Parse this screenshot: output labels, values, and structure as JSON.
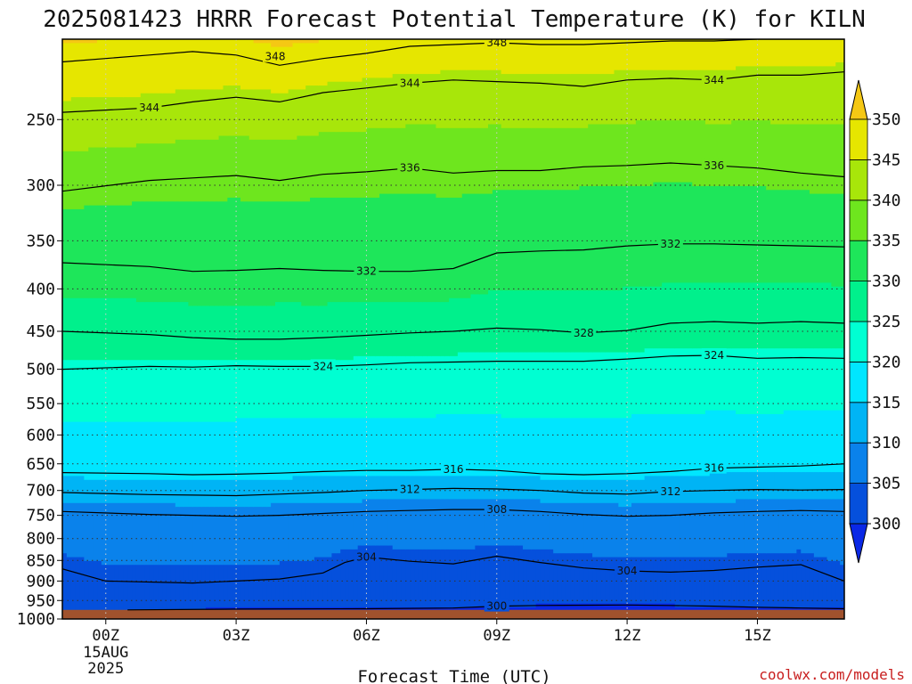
{
  "title": "2025081423 HRRR Forecast Potential Temperature (K) for KILN",
  "xlabel": "Forecast Time (UTC)",
  "credit": "coolwx.com/models",
  "chart_data": {
    "type": "contour",
    "title": "2025081423 HRRR Forecast Potential Temperature (K) for KILN",
    "xlabel": "Forecast Time (UTC)",
    "ylabel": "",
    "y_scale": "log",
    "y_inverted": true,
    "ylim": [
      1000,
      200
    ],
    "xlim": [
      -1,
      17
    ],
    "x_ticks": [
      {
        "x": 0,
        "label": "00Z",
        "sub": [
          "15AUG",
          "2025"
        ]
      },
      {
        "x": 3,
        "label": "03Z"
      },
      {
        "x": 6,
        "label": "06Z"
      },
      {
        "x": 9,
        "label": "09Z"
      },
      {
        "x": 12,
        "label": "12Z"
      },
      {
        "x": 15,
        "label": "15Z"
      }
    ],
    "y_ticks": [
      250,
      300,
      350,
      400,
      450,
      500,
      550,
      600,
      650,
      700,
      750,
      800,
      850,
      900,
      950,
      1000
    ],
    "grid": true,
    "colorbar": {
      "levels": [
        300,
        305,
        310,
        315,
        320,
        325,
        330,
        335,
        340,
        345,
        350
      ],
      "colors": [
        "#0a28e6",
        "#0550dc",
        "#0a82eb",
        "#00b4f5",
        "#00e6ff",
        "#00ffd2",
        "#00f08c",
        "#1ee65a",
        "#6ee61e",
        "#a8e60a",
        "#e6e600",
        "#f5c814"
      ],
      "extend": "both"
    },
    "contours": [
      {
        "level": 348,
        "x": [
          -1,
          1,
          2,
          3,
          4,
          5,
          6,
          7,
          8,
          9,
          10,
          11,
          12,
          13,
          14,
          15,
          16,
          17
        ],
        "y": [
          213,
          209,
          207,
          209,
          215,
          211,
          208,
          204,
          203,
          202,
          203,
          203,
          202,
          201,
          201,
          200,
          200,
          200
        ]
      },
      {
        "level": 344,
        "x": [
          -1,
          1,
          2,
          3,
          4,
          5,
          6,
          7,
          8,
          9,
          10,
          11,
          12,
          13,
          14,
          15,
          16,
          17
        ],
        "y": [
          245,
          242,
          238,
          235,
          238,
          232,
          229,
          226,
          224,
          225,
          226,
          228,
          224,
          223,
          224,
          221,
          221,
          219
        ]
      },
      {
        "level": 336,
        "x": [
          -1,
          1,
          2,
          3,
          4,
          5,
          6,
          7,
          8,
          9,
          10,
          11,
          12,
          13,
          14,
          15,
          16,
          17
        ],
        "y": [
          305,
          296,
          294,
          292,
          296,
          291,
          289,
          286,
          290,
          288,
          288,
          285,
          284,
          282,
          284,
          286,
          290,
          293
        ]
      },
      {
        "level": 332,
        "x": [
          -1,
          1,
          2,
          3,
          4,
          5,
          6,
          7,
          8,
          9,
          10,
          11,
          12,
          13,
          14,
          15,
          16,
          17
        ],
        "y": [
          372,
          376,
          381,
          380,
          378,
          380,
          381,
          381,
          378,
          362,
          360,
          359,
          355,
          353,
          353,
          354,
          355,
          356
        ]
      },
      {
        "level": 328,
        "x": [
          -1,
          1,
          2,
          3,
          4,
          5,
          6,
          7,
          8,
          9,
          10,
          11,
          12,
          13,
          14,
          15,
          16,
          17
        ],
        "y": [
          450,
          454,
          458,
          460,
          460,
          458,
          455,
          452,
          450,
          446,
          448,
          452,
          449,
          440,
          438,
          440,
          438,
          440
        ]
      },
      {
        "level": 324,
        "x": [
          -1,
          1,
          2,
          3,
          4,
          5,
          6,
          7,
          8,
          9,
          10,
          11,
          12,
          13,
          14,
          15,
          16,
          17
        ],
        "y": [
          500,
          496,
          497,
          495,
          496,
          496,
          494,
          491,
          490,
          489,
          489,
          489,
          486,
          482,
          481,
          485,
          484,
          485
        ]
      },
      {
        "level": 316,
        "x": [
          -1,
          1,
          2,
          3,
          4,
          5,
          6,
          7,
          8,
          9,
          10,
          11,
          12,
          13,
          14,
          15,
          16,
          17
        ],
        "y": [
          666,
          668,
          670,
          669,
          667,
          664,
          662,
          662,
          660,
          662,
          668,
          670,
          668,
          664,
          658,
          656,
          654,
          650
        ]
      },
      {
        "level": 312,
        "x": [
          -1,
          1,
          2,
          3,
          4,
          5,
          6,
          7,
          8,
          9,
          10,
          11,
          12,
          13,
          14,
          15,
          16,
          17
        ],
        "y": [
          704,
          708,
          709,
          710,
          707,
          704,
          700,
          698,
          696,
          697,
          700,
          705,
          707,
          702,
          700,
          698,
          699,
          698
        ]
      },
      {
        "level": 308,
        "x": [
          -1,
          1,
          2,
          3,
          4,
          5,
          6,
          7,
          8,
          9,
          10,
          11,
          12,
          13,
          14,
          15,
          16,
          17
        ],
        "y": [
          742,
          748,
          750,
          752,
          750,
          746,
          742,
          740,
          738,
          738,
          742,
          748,
          752,
          750,
          745,
          742,
          740,
          742
        ]
      },
      {
        "level": 304,
        "x": [
          -1,
          0,
          2,
          4,
          5,
          5.5,
          6,
          7,
          8,
          9,
          10,
          11,
          12,
          13,
          14,
          15,
          16,
          17
        ],
        "y": [
          870,
          900,
          905,
          895,
          880,
          855,
          842,
          852,
          858,
          840,
          855,
          868,
          875,
          878,
          874,
          866,
          860,
          900
        ]
      },
      {
        "level": 300,
        "x": [
          0.5,
          3,
          6,
          8,
          9,
          10,
          12,
          13,
          14,
          15,
          16,
          17
        ],
        "y": [
          975,
          973,
          972,
          970,
          965,
          963,
          962,
          963,
          965,
          968,
          970,
          972
        ]
      }
    ],
    "contour_labels": [
      {
        "text": "348",
        "x": 3.9,
        "y": 210
      },
      {
        "text": "348",
        "x": 9.0,
        "y": 202
      },
      {
        "text": "344",
        "x": 1.0,
        "y": 242
      },
      {
        "text": "344",
        "x": 7.0,
        "y": 226
      },
      {
        "text": "344",
        "x": 14.0,
        "y": 224
      },
      {
        "text": "336",
        "x": 7.0,
        "y": 286
      },
      {
        "text": "336",
        "x": 14.0,
        "y": 284
      },
      {
        "text": "332",
        "x": 6.0,
        "y": 381
      },
      {
        "text": "332",
        "x": 13.0,
        "y": 353
      },
      {
        "text": "328",
        "x": 11.0,
        "y": 452
      },
      {
        "text": "324",
        "x": 5.0,
        "y": 496
      },
      {
        "text": "324",
        "x": 14.0,
        "y": 481
      },
      {
        "text": "316",
        "x": 8.0,
        "y": 660
      },
      {
        "text": "316",
        "x": 14.0,
        "y": 658
      },
      {
        "text": "312",
        "x": 7.0,
        "y": 698
      },
      {
        "text": "312",
        "x": 13.0,
        "y": 702
      },
      {
        "text": "308",
        "x": 9.0,
        "y": 738
      },
      {
        "text": "304",
        "x": 6.0,
        "y": 842
      },
      {
        "text": "304",
        "x": 12.0,
        "y": 875
      },
      {
        "text": "300",
        "x": 9.0,
        "y": 965
      }
    ],
    "ground": {
      "above_pressure": 975,
      "color": "#a0522d"
    }
  }
}
